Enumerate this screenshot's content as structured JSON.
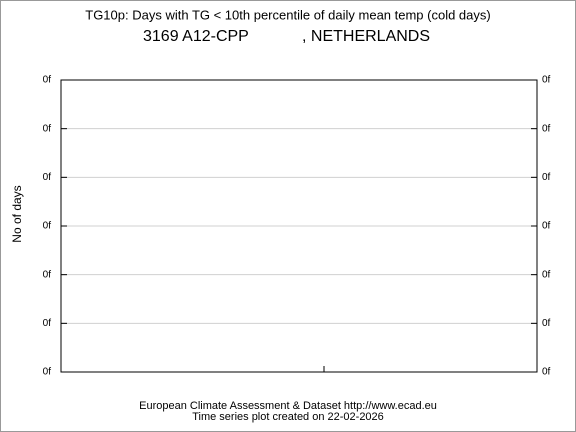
{
  "chart_data": {
    "type": "line",
    "title": "TG10p: Days with TG < 10th percentile of daily mean temp (cold days)",
    "station": "3169 A12-CPP",
    "country": ", NETHERLANDS",
    "y_label": "No of days",
    "series": [],
    "ylim": [
      0,
      6
    ],
    "yticks": [
      {
        "value": 0,
        "label": "0f"
      },
      {
        "value": 1,
        "label": "0f"
      },
      {
        "value": 2,
        "label": "0f"
      },
      {
        "value": 3,
        "label": "0f"
      },
      {
        "value": 4,
        "label": "0f"
      },
      {
        "value": 5,
        "label": "0f"
      },
      {
        "value": 6,
        "label": "0f"
      }
    ],
    "grid": true,
    "footer": [
      "European Climate Assessment & Dataset  http://www.ecad.eu",
      "Time series plot created on 22-02-2026"
    ]
  }
}
